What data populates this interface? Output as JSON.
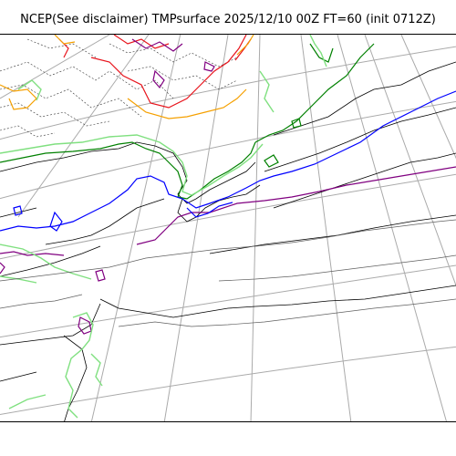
{
  "title": "NCEP(See disclaimer) TMPsurface 2025/12/10 00Z FT=60 (init 0712Z)",
  "map": {
    "projection": "polar-stereographic",
    "graticule": "on",
    "colors": {
      "graticule": "#aaaaaa",
      "coastline": "#000000",
      "background": "#ffffff"
    },
    "contour_colors": [
      {
        "name": "red",
        "hex": "#e8141c"
      },
      {
        "name": "orange",
        "hex": "#f5a000"
      },
      {
        "name": "purple",
        "hex": "#800080"
      },
      {
        "name": "dark-green",
        "hex": "#008000"
      },
      {
        "name": "light-green",
        "hex": "#80e080"
      },
      {
        "name": "blue",
        "hex": "#0000ff"
      },
      {
        "name": "gray",
        "hex": "#606060"
      },
      {
        "name": "dotted-dark",
        "hex": "#333333"
      }
    ]
  }
}
